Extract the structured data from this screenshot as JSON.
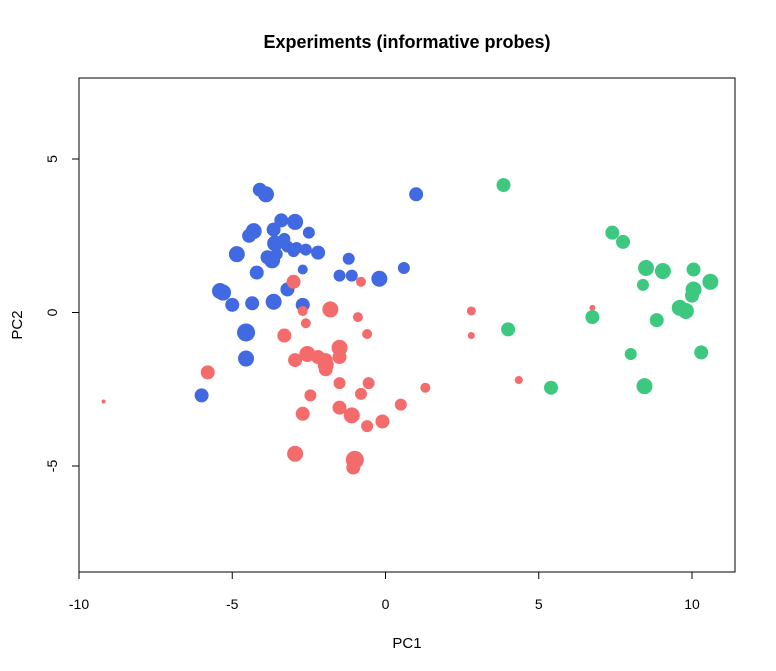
{
  "chart_data": {
    "type": "scatter",
    "title": "Experiments (informative probes)",
    "xlabel": "PC1",
    "ylabel": "PC2",
    "xlim": [
      -10.5,
      11.0
    ],
    "ylim": [
      -8.5,
      7.5
    ],
    "xticks": [
      -10,
      -5,
      0,
      5,
      10
    ],
    "yticks": [
      -5,
      0,
      5
    ],
    "grid": false,
    "legend": "none",
    "series": [
      {
        "color": "#4169E1",
        "points": [
          [
            -4.1,
            4.0,
            1.4
          ],
          [
            -3.9,
            3.85,
            1.6
          ],
          [
            1.0,
            3.85,
            1.4
          ],
          [
            -3.4,
            3.0,
            1.4
          ],
          [
            -2.95,
            2.95,
            1.6
          ],
          [
            -2.5,
            2.6,
            1.2
          ],
          [
            -3.65,
            2.7,
            1.4
          ],
          [
            -4.3,
            2.65,
            1.6
          ],
          [
            -4.45,
            2.5,
            1.4
          ],
          [
            -3.3,
            2.4,
            1.2
          ],
          [
            -3.6,
            2.25,
            1.6
          ],
          [
            -3.2,
            2.15,
            1.2
          ],
          [
            -2.9,
            2.1,
            1.2
          ],
          [
            -3.0,
            2.0,
            1.2
          ],
          [
            -2.6,
            2.05,
            1.2
          ],
          [
            -2.2,
            1.95,
            1.4
          ],
          [
            -3.55,
            1.9,
            1.2
          ],
          [
            -4.85,
            1.9,
            1.6
          ],
          [
            -3.85,
            1.8,
            1.4
          ],
          [
            -3.7,
            1.7,
            1.6
          ],
          [
            -1.2,
            1.75,
            1.2
          ],
          [
            -2.7,
            1.4,
            1.0
          ],
          [
            -4.2,
            1.3,
            1.4
          ],
          [
            -1.5,
            1.2,
            1.2
          ],
          [
            -1.1,
            1.2,
            1.2
          ],
          [
            -0.2,
            1.1,
            1.6
          ],
          [
            0.6,
            1.45,
            1.2
          ],
          [
            -5.4,
            0.7,
            1.6
          ],
          [
            -5.3,
            0.65,
            1.6
          ],
          [
            -3.2,
            0.75,
            1.4
          ],
          [
            -5.0,
            0.25,
            1.4
          ],
          [
            -4.35,
            0.3,
            1.4
          ],
          [
            -3.65,
            0.35,
            1.6
          ],
          [
            -2.7,
            0.25,
            1.4
          ],
          [
            -4.55,
            -0.65,
            1.8
          ],
          [
            -4.55,
            -1.5,
            1.6
          ],
          [
            -6.0,
            -2.7,
            1.4
          ]
        ]
      },
      {
        "color": "#F46B6B",
        "points": [
          [
            -3.0,
            1.0,
            1.4
          ],
          [
            -0.8,
            1.0,
            1.0
          ],
          [
            -2.7,
            0.05,
            1.0
          ],
          [
            -1.8,
            0.1,
            1.6
          ],
          [
            -0.9,
            -0.15,
            1.0
          ],
          [
            -2.6,
            -0.35,
            1.0
          ],
          [
            -3.3,
            -0.75,
            1.4
          ],
          [
            -0.6,
            -0.7,
            1.0
          ],
          [
            -1.5,
            -1.15,
            1.6
          ],
          [
            -2.55,
            -1.35,
            1.6
          ],
          [
            -2.2,
            -1.45,
            1.4
          ],
          [
            -1.5,
            -1.45,
            1.4
          ],
          [
            -2.95,
            -1.55,
            1.4
          ],
          [
            -1.95,
            -1.55,
            1.4
          ],
          [
            -1.95,
            -1.7,
            1.6
          ],
          [
            -1.95,
            -1.85,
            1.4
          ],
          [
            -1.5,
            -2.3,
            1.2
          ],
          [
            -0.55,
            -2.3,
            1.2
          ],
          [
            -5.8,
            -1.95,
            1.4
          ],
          [
            -0.8,
            -2.65,
            1.2
          ],
          [
            -2.45,
            -2.7,
            1.2
          ],
          [
            -1.5,
            -3.1,
            1.4
          ],
          [
            -2.7,
            -3.3,
            1.4
          ],
          [
            -1.1,
            -3.35,
            1.6
          ],
          [
            -0.1,
            -3.55,
            1.4
          ],
          [
            -0.6,
            -3.7,
            1.2
          ],
          [
            0.5,
            -3.0,
            1.2
          ],
          [
            1.3,
            -2.45,
            1.0
          ],
          [
            -2.95,
            -4.6,
            1.6
          ],
          [
            -1.0,
            -4.8,
            1.8
          ],
          [
            -1.05,
            -5.05,
            1.4
          ],
          [
            2.8,
            0.05,
            0.9
          ],
          [
            2.8,
            -0.75,
            0.7
          ],
          [
            4.35,
            -2.2,
            0.8
          ],
          [
            6.75,
            0.15,
            0.6
          ],
          [
            -9.2,
            -2.9,
            0.4
          ]
        ]
      },
      {
        "color": "#3CC97F",
        "points": [
          [
            3.85,
            4.15,
            1.4
          ],
          [
            7.4,
            2.6,
            1.4
          ],
          [
            7.75,
            2.3,
            1.4
          ],
          [
            8.5,
            1.45,
            1.6
          ],
          [
            9.05,
            1.35,
            1.6
          ],
          [
            10.05,
            1.4,
            1.4
          ],
          [
            10.6,
            1.0,
            1.6
          ],
          [
            8.4,
            0.9,
            1.2
          ],
          [
            10.05,
            0.75,
            1.6
          ],
          [
            10.0,
            0.55,
            1.4
          ],
          [
            9.6,
            0.15,
            1.6
          ],
          [
            9.8,
            0.05,
            1.6
          ],
          [
            8.85,
            -0.25,
            1.4
          ],
          [
            6.75,
            -0.15,
            1.4
          ],
          [
            4.0,
            -0.55,
            1.4
          ],
          [
            8.0,
            -1.35,
            1.2
          ],
          [
            10.3,
            -1.3,
            1.4
          ],
          [
            5.4,
            -2.45,
            1.4
          ],
          [
            8.45,
            -2.4,
            1.6
          ]
        ]
      }
    ]
  }
}
